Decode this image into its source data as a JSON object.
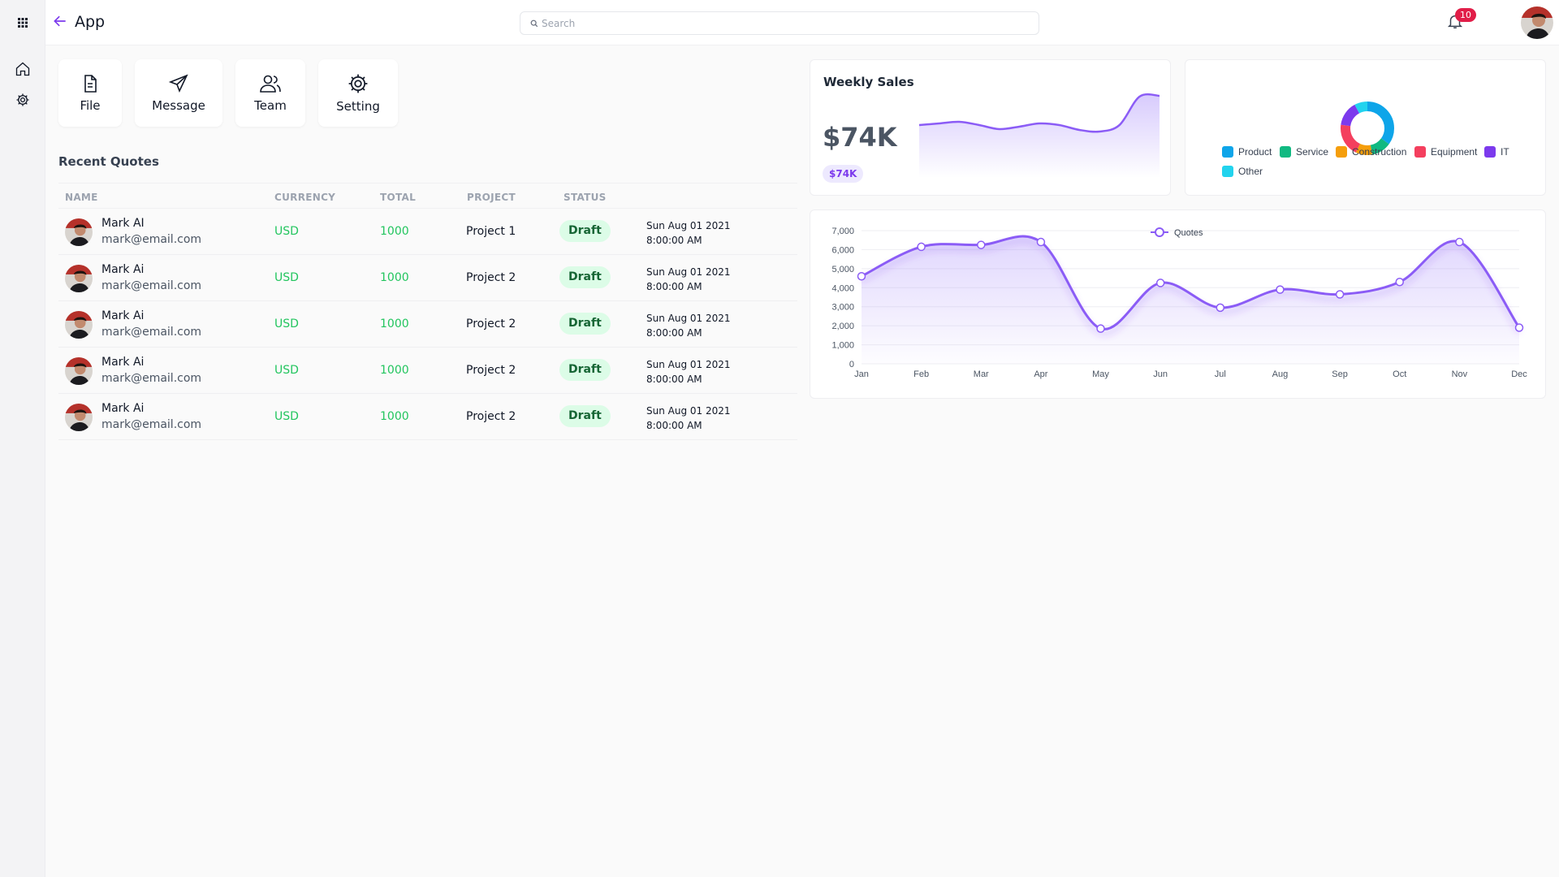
{
  "header": {
    "title": "App",
    "search_placeholder": "Search",
    "notification_count": "10"
  },
  "sidebar": {
    "items": [
      {
        "name": "home-icon"
      },
      {
        "name": "gear-icon"
      }
    ]
  },
  "quick_actions": [
    {
      "label": "File",
      "icon": "file-icon"
    },
    {
      "label": "Message",
      "icon": "send-icon"
    },
    {
      "label": "Team",
      "icon": "team-icon"
    },
    {
      "label": "Setting",
      "icon": "gear-icon"
    }
  ],
  "recent_quotes": {
    "title": "Recent Quotes",
    "columns": [
      "NAME",
      "CURRENCY",
      "TOTAL",
      "PROJECT",
      "STATUS"
    ],
    "rows": [
      {
        "name": "Mark AI",
        "email": "mark@email.com",
        "currency": "USD",
        "total": "1000",
        "project": "Project 1",
        "status": "Draft",
        "date": "Sun Aug 01 2021",
        "time": "8:00:00 AM"
      },
      {
        "name": "Mark Ai",
        "email": "mark@email.com",
        "currency": "USD",
        "total": "1000",
        "project": "Project 2",
        "status": "Draft",
        "date": "Sun Aug 01 2021",
        "time": "8:00:00 AM"
      },
      {
        "name": "Mark Ai",
        "email": "mark@email.com",
        "currency": "USD",
        "total": "1000",
        "project": "Project 2",
        "status": "Draft",
        "date": "Sun Aug 01 2021",
        "time": "8:00:00 AM"
      },
      {
        "name": "Mark Ai",
        "email": "mark@email.com",
        "currency": "USD",
        "total": "1000",
        "project": "Project 2",
        "status": "Draft",
        "date": "Sun Aug 01 2021",
        "time": "8:00:00 AM"
      },
      {
        "name": "Mark Ai",
        "email": "mark@email.com",
        "currency": "USD",
        "total": "1000",
        "project": "Project 2",
        "status": "Draft",
        "date": "Sun Aug 01 2021",
        "time": "8:00:00 AM"
      }
    ]
  },
  "weekly_sales": {
    "title": "Weekly Sales",
    "value": "$74K",
    "pill": "$74K"
  },
  "colors": {
    "accent": "#7c3aed",
    "line": "#8b5cf6",
    "positive": "#22c55e",
    "badge": "#e11d48"
  },
  "chart_data": [
    {
      "type": "area",
      "title": "",
      "values": [
        60,
        62,
        64,
        60,
        55,
        58,
        62,
        60,
        54,
        52,
        60,
        95,
        96
      ]
    },
    {
      "type": "pie",
      "style": "donut",
      "legend_position": "bottom",
      "categories": [
        "Product",
        "Service",
        "Construction",
        "Equipment",
        "IT",
        "Other"
      ],
      "colors": [
        "#0ea5e9",
        "#10b981",
        "#f59e0b",
        "#f43f5e",
        "#7c3aed",
        "#22d3ee"
      ],
      "values": [
        35,
        12,
        10,
        20,
        15,
        8
      ]
    },
    {
      "type": "area",
      "categories": [
        "Jan",
        "Feb",
        "Mar",
        "Apr",
        "May",
        "Jun",
        "Jul",
        "Aug",
        "Sep",
        "Oct",
        "Nov",
        "Dec"
      ],
      "series": [
        {
          "name": "Quotes",
          "values": [
            4600,
            6150,
            6250,
            6400,
            1850,
            4250,
            2950,
            3900,
            3650,
            4300,
            6400,
            1900
          ]
        }
      ],
      "ylim": [
        0,
        7000
      ],
      "yticks": [
        "0",
        "1,000",
        "2,000",
        "3,000",
        "4,000",
        "5,000",
        "6,000",
        "7,000"
      ],
      "grid": true,
      "legend_position": "top"
    }
  ]
}
